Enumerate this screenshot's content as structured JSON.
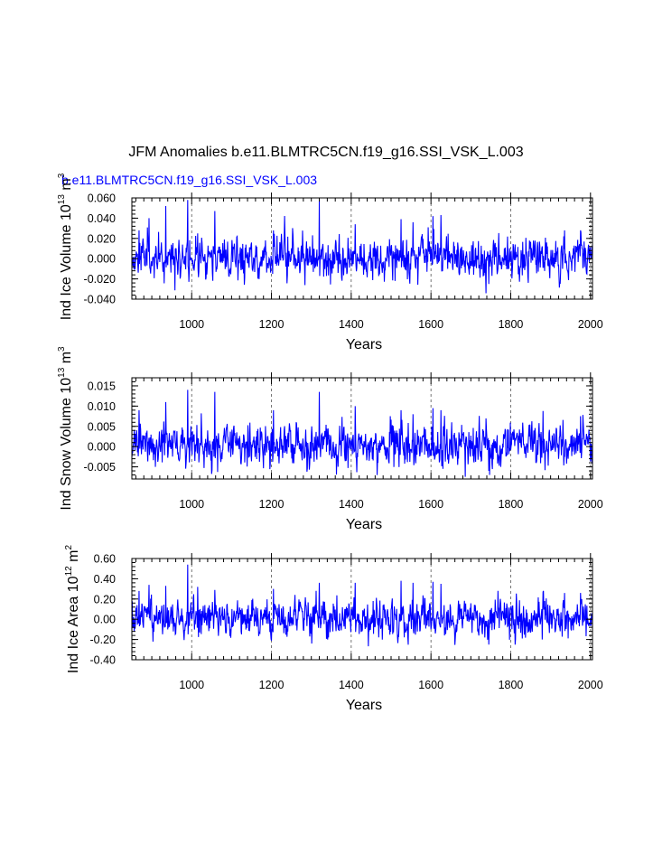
{
  "title": "JFM Anomalies b.e11.BLMTRC5CN.f19_g16.SSI_VSK_L.003",
  "subtitle": "b.e11.BLMTRC5CN.f19_g16.SSI_VSK_L.003",
  "colors": {
    "series": "#0000ff",
    "subtitle": "#0000ff",
    "axis": "#000000",
    "grid": "#555555"
  },
  "chart_data": [
    {
      "type": "line",
      "ylabel_main": "Ind Ice Volume 10",
      "ylabel_exp1": "13",
      "ylabel_unit": " m",
      "ylabel_exp2": "3",
      "xlabel": "Years",
      "xlim": [
        850,
        2005
      ],
      "ylim": [
        -0.04,
        0.06
      ],
      "xticks": [
        1000,
        1200,
        1400,
        1600,
        1800,
        2000
      ],
      "xtick_labels": [
        "1000",
        "1200",
        "1400",
        "1600",
        "1800",
        "2000"
      ],
      "yticks": [
        -0.04,
        -0.02,
        0.0,
        0.02,
        0.04,
        0.06
      ],
      "ytick_labels": [
        "-0.040",
        "-0.020",
        "0.000",
        "0.020",
        "0.040",
        "0.060"
      ],
      "grid": "vertical dashed at major x ticks",
      "series": [
        {
          "name": "Ind Ice Volume",
          "seed": 11,
          "amp": 0.011,
          "x_start": 850,
          "x_end": 2005,
          "peaks": [
            [
              868,
              0.028
            ],
            [
              893,
              0.04
            ],
            [
              935,
              0.052
            ],
            [
              990,
              0.058
            ],
            [
              1015,
              0.025
            ],
            [
              1058,
              0.047
            ],
            [
              1205,
              0.028
            ],
            [
              1320,
              0.057
            ],
            [
              1410,
              0.034
            ],
            [
              1525,
              0.039
            ],
            [
              1555,
              0.036
            ],
            [
              1605,
              0.042
            ],
            [
              1625,
              0.043
            ],
            [
              1935,
              0.028
            ],
            [
              1975,
              0.028
            ],
            [
              1745,
              -0.025
            ],
            [
              1510,
              -0.022
            ]
          ]
        }
      ]
    },
    {
      "type": "line",
      "ylabel_main": "Ind Snow Volume 10",
      "ylabel_exp1": "13",
      "ylabel_unit": " m",
      "ylabel_exp2": "3",
      "xlabel": "Years",
      "xlim": [
        850,
        2005
      ],
      "ylim": [
        -0.008,
        0.017
      ],
      "xticks": [
        1000,
        1200,
        1400,
        1600,
        1800,
        2000
      ],
      "xtick_labels": [
        "1000",
        "1200",
        "1400",
        "1600",
        "1800",
        "2000"
      ],
      "yticks": [
        -0.005,
        0.0,
        0.005,
        0.01,
        0.015
      ],
      "ytick_labels": [
        "-0.005",
        "0.000",
        "0.005",
        "0.010",
        "0.015"
      ],
      "grid": "vertical dashed at major x ticks",
      "series": [
        {
          "name": "Ind Snow Volume",
          "seed": 23,
          "amp": 0.0028,
          "x_start": 850,
          "x_end": 2005,
          "peaks": [
            [
              868,
              0.009
            ],
            [
              935,
              0.011
            ],
            [
              990,
              0.014
            ],
            [
              1058,
              0.0135
            ],
            [
              1205,
              0.009
            ],
            [
              1320,
              0.0135
            ],
            [
              1410,
              0.01
            ],
            [
              1525,
              0.009
            ],
            [
              1555,
              0.008
            ],
            [
              1605,
              0.0095
            ],
            [
              1625,
              0.009
            ],
            [
              1975,
              0.0075
            ],
            [
              1745,
              -0.006
            ],
            [
              1630,
              -0.0055
            ]
          ]
        }
      ]
    },
    {
      "type": "line",
      "ylabel_main": "Ind Ice Area 10",
      "ylabel_exp1": "12",
      "ylabel_unit": " m",
      "ylabel_exp2": "2",
      "xlabel": "Years",
      "xlim": [
        850,
        2005
      ],
      "ylim": [
        -0.4,
        0.6
      ],
      "xticks": [
        1000,
        1200,
        1400,
        1600,
        1800,
        2000
      ],
      "xtick_labels": [
        "1000",
        "1200",
        "1400",
        "1600",
        "1800",
        "2000"
      ],
      "yticks": [
        -0.4,
        -0.2,
        0.0,
        0.2,
        0.4,
        0.6
      ],
      "ytick_labels": [
        "-0.40",
        "-0.20",
        "0.00",
        "0.20",
        "0.40",
        "0.60"
      ],
      "grid": "vertical dashed at major x ticks",
      "series": [
        {
          "name": "Ind Ice Area",
          "seed": 37,
          "amp": 0.1,
          "x_start": 850,
          "x_end": 2005,
          "peaks": [
            [
              868,
              0.28
            ],
            [
              893,
              0.34
            ],
            [
              935,
              0.33
            ],
            [
              990,
              0.54
            ],
            [
              1015,
              0.32
            ],
            [
              1058,
              0.29
            ],
            [
              1205,
              0.3
            ],
            [
              1320,
              0.36
            ],
            [
              1410,
              0.36
            ],
            [
              1525,
              0.38
            ],
            [
              1555,
              0.36
            ],
            [
              1605,
              0.37
            ],
            [
              1625,
              0.35
            ],
            [
              1935,
              0.26
            ],
            [
              1975,
              0.26
            ],
            [
              1745,
              -0.25
            ]
          ]
        }
      ]
    }
  ]
}
